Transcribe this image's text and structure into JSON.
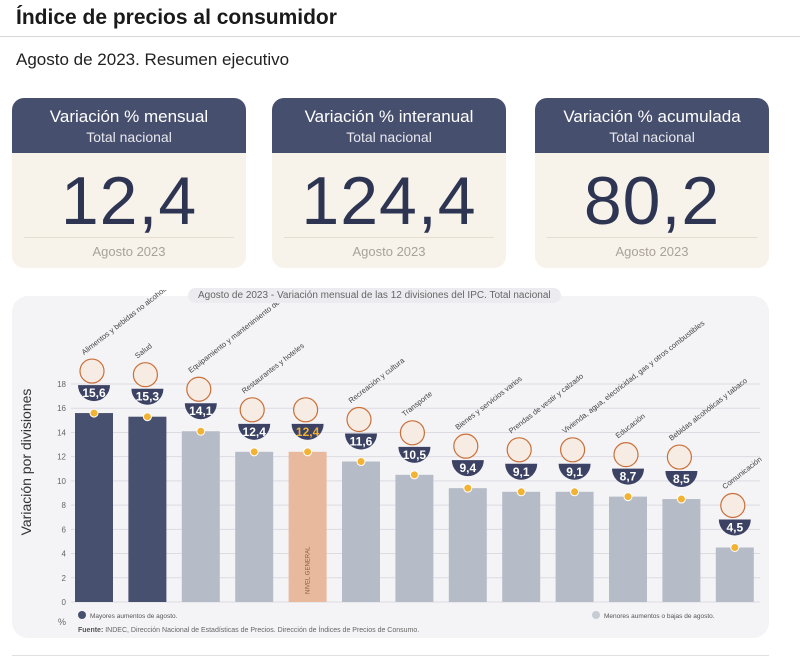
{
  "header": {
    "title": "Índice de precios al consumidor",
    "subtitle": "Agosto de 2023. Resumen ejecutivo"
  },
  "cards": [
    {
      "title": "Variación % mensual",
      "subtitle": "Total nacional",
      "value": "12,4",
      "period": "Agosto 2023"
    },
    {
      "title": "Variación % interanual",
      "subtitle": "Total nacional",
      "value": "124,4",
      "period": "Agosto 2023"
    },
    {
      "title": "Variación % acumulada",
      "subtitle": "Total nacional",
      "value": "80,2",
      "period": "Agosto 2023"
    }
  ],
  "chart_data": {
    "type": "bar",
    "title_period": "Agosto de 2023",
    "title": " - Variación mensual de las 12 divisiones del IPC. Total nacional",
    "ylabel": "Variación por divisiones",
    "yunit": "%",
    "ylim": [
      0,
      18
    ],
    "yticks": [
      0,
      2,
      4,
      6,
      8,
      10,
      12,
      14,
      16,
      18
    ],
    "categories": [
      "Alimentos y bebidas no alcohólicas",
      "Salud",
      "Equipamiento y mantenimiento del hogar",
      "Restaurantes y hoteles",
      "NIVEL GENERAL",
      "Recreación y cultura",
      "Transporte",
      "Bienes y servicios varios",
      "Prendas de vestir y calzado",
      "Vivienda, agua, electricidad, gas y otros combustibles",
      "Educación",
      "Bebidas alcohólicas y tabaco",
      "Comunicación"
    ],
    "values": [
      15.6,
      15.3,
      14.1,
      12.4,
      12.4,
      11.6,
      10.5,
      9.4,
      9.1,
      9.1,
      8.7,
      8.5,
      4.5
    ],
    "value_labels": [
      "15,6",
      "15,3",
      "14,1",
      "12,4",
      "12,4",
      "11,6",
      "10,5",
      "9,4",
      "9,1",
      "9,1",
      "8,7",
      "8,5",
      "4,5"
    ],
    "groups": [
      "high",
      "high",
      "low",
      "low",
      "general",
      "low",
      "low",
      "low",
      "low",
      "low",
      "low",
      "low",
      "low"
    ],
    "general_label": "NIVEL GENERAL",
    "legend": [
      {
        "label": "Mayores aumentos de agosto.",
        "color": "#47506e"
      },
      {
        "label": "Menores aumentos o bajas de agosto.",
        "color": "#c7cbd3"
      }
    ],
    "colors": {
      "high": "#47506e",
      "low": "#b5bcc7",
      "general": "#e8b99d",
      "badge": "#3b4263",
      "dot": "#f2b233",
      "grid": "#ffffff"
    },
    "source_label": "Fuente:",
    "source": "INDEC, Dirección Nacional de Estadísticas de Precios. Dirección de Índices de Precios de Consumo."
  }
}
